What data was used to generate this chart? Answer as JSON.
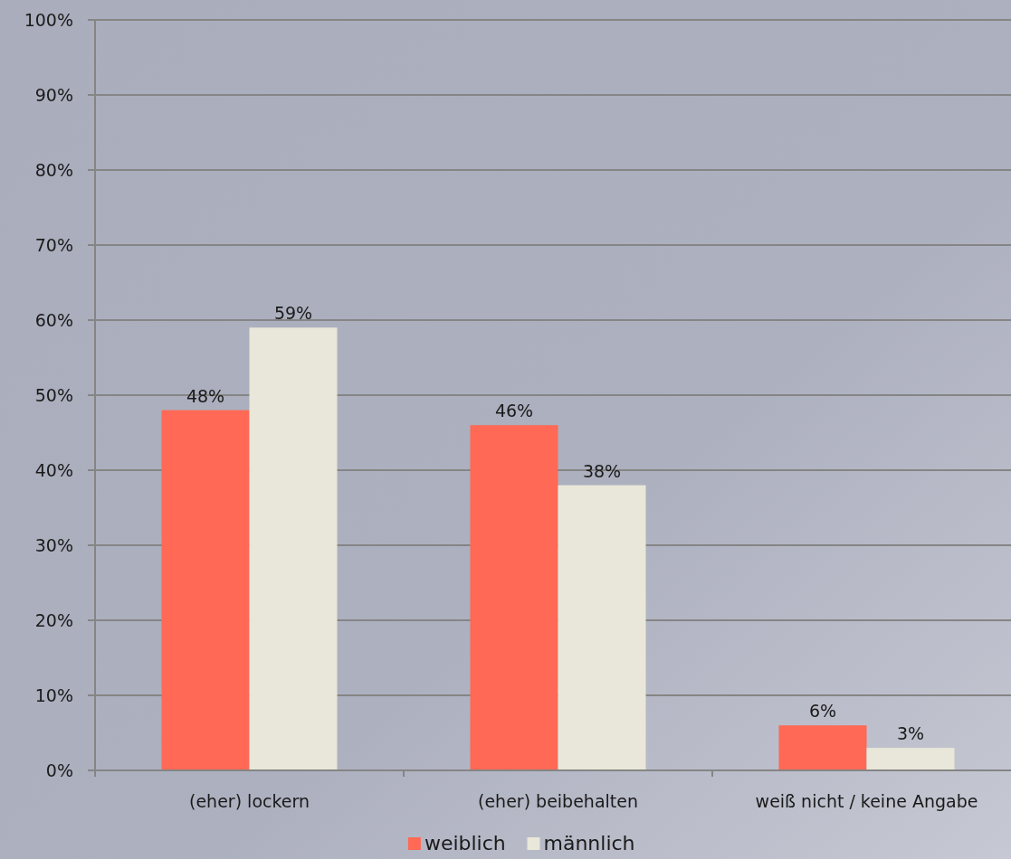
{
  "chart_data": {
    "type": "bar",
    "categories": [
      "(eher) lockern",
      "(eher) beibehalten",
      "weiß nicht / keine Angabe"
    ],
    "series": [
      {
        "name": "weiblich",
        "color": "#ff6955",
        "values": [
          48,
          46,
          6
        ],
        "value_labels": [
          "48%",
          "46%",
          "6%"
        ]
      },
      {
        "name": "männlich",
        "color": "#e9e7d9",
        "values": [
          59,
          38,
          3
        ],
        "value_labels": [
          "59%",
          "38%",
          "3%"
        ]
      }
    ],
    "ylim": [
      0,
      100
    ],
    "yticks": [
      {
        "value": 0,
        "label": "0%"
      },
      {
        "value": 10,
        "label": "10%"
      },
      {
        "value": 20,
        "label": "20%"
      },
      {
        "value": 30,
        "label": "30%"
      },
      {
        "value": 40,
        "label": "40%"
      },
      {
        "value": 50,
        "label": "50%"
      },
      {
        "value": 60,
        "label": "60%"
      },
      {
        "value": 70,
        "label": "70%"
      },
      {
        "value": 80,
        "label": "80%"
      },
      {
        "value": 90,
        "label": "90%"
      },
      {
        "value": 100,
        "label": "100%"
      }
    ],
    "grid": "y",
    "legend": "bottom"
  }
}
